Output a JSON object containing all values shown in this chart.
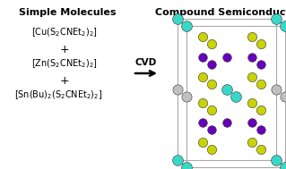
{
  "title_left": "Simple Molecules",
  "title_right": "Compound Semiconductor",
  "bg_color": "#ffffff",
  "text_color": "#000000",
  "col_S": "#c8d400",
  "col_Cu": "#6600bb",
  "col_Zn": "#c0c0c0",
  "col_Sn": "#38d8c8",
  "figw": 3.19,
  "figh": 1.89,
  "dpi": 100
}
